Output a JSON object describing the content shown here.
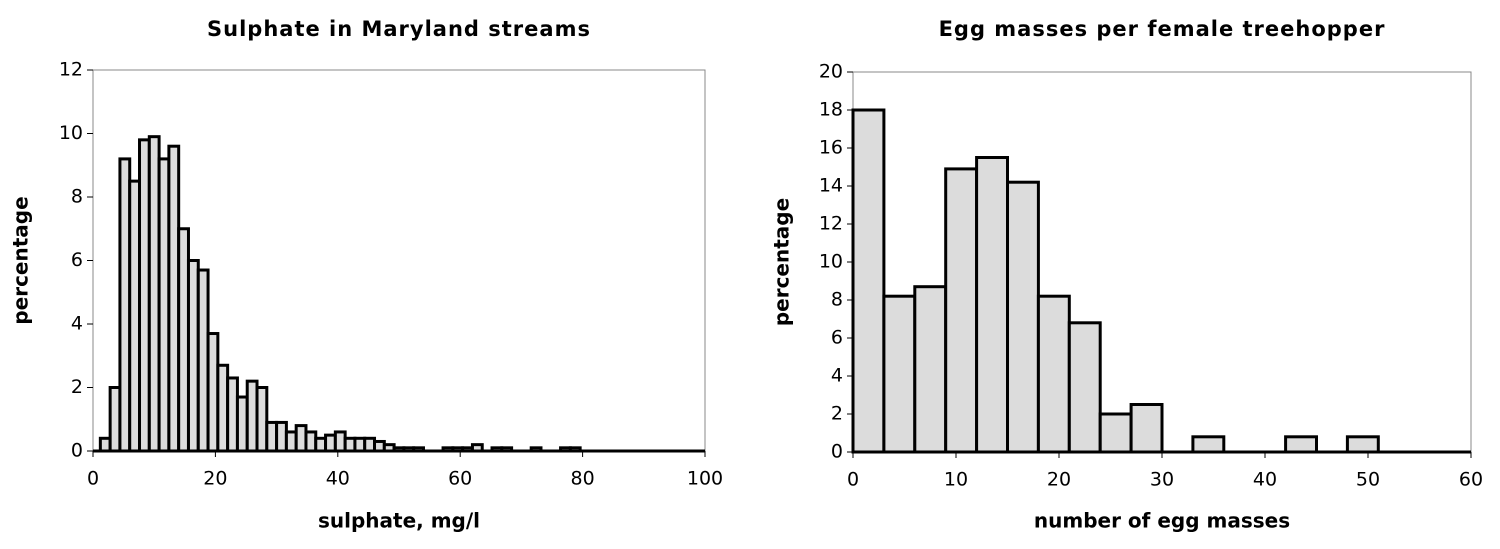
{
  "chart_data": [
    {
      "type": "histogram",
      "title": "Sulphate in Maryland streams",
      "xlabel": "sulphate, mg/l",
      "ylabel": "percentage",
      "bins": [
        1.2,
        2.8,
        4.4,
        6,
        7.6,
        9.2,
        10.8,
        12.4,
        14,
        15.6,
        17.2,
        18.8,
        20.4,
        22,
        23.6,
        25.2,
        26.8,
        28.4,
        30,
        31.6,
        33.2,
        34.8,
        36.4,
        38,
        39.6,
        41.2,
        42.8,
        44.4,
        46,
        47.6,
        49.2,
        50.8,
        52.4,
        54,
        55.6,
        57.2,
        58.8,
        60.4,
        62,
        63.6,
        65.2,
        66.8,
        68.4,
        70,
        71.6,
        73.2,
        74.8,
        76.4,
        78,
        79.6
      ],
      "values": [
        0.4,
        2.0,
        9.2,
        8.5,
        9.8,
        9.9,
        9.2,
        9.6,
        7.0,
        6.0,
        5.7,
        3.7,
        2.7,
        2.3,
        1.7,
        2.2,
        2.0,
        0.9,
        0.9,
        0.6,
        0.8,
        0.6,
        0.4,
        0.5,
        0.6,
        0.4,
        0.4,
        0.4,
        0.3,
        0.2,
        0.1,
        0.1,
        0.1,
        0,
        0,
        0.1,
        0.1,
        0.1,
        0.2,
        0,
        0.1,
        0.1,
        0,
        0,
        0.1,
        0,
        0,
        0.1,
        0.1
      ],
      "color": "#dcdcdc",
      "xlim": [
        0,
        100
      ],
      "xticks": [
        0,
        20,
        40,
        60,
        80,
        100
      ],
      "ylim": [
        0,
        12
      ],
      "yticks": [
        0,
        2,
        4,
        6,
        8,
        10,
        12
      ]
    },
    {
      "type": "histogram",
      "title": "Egg masses per female treehopper",
      "xlabel": "number of egg masses",
      "ylabel": "percentage",
      "bins": [
        0,
        3,
        6,
        9,
        12,
        15,
        18,
        21,
        24,
        27,
        30,
        33,
        36,
        39,
        42,
        45,
        48,
        51
      ],
      "values": [
        18,
        8.2,
        8.7,
        14.9,
        15.5,
        14.2,
        8.2,
        6.8,
        2.0,
        2.5,
        0,
        0.8,
        0,
        0,
        0.8,
        0,
        0.8
      ],
      "color": "#dcdcdc",
      "xlim": [
        0,
        60
      ],
      "xticks": [
        0,
        10,
        20,
        30,
        40,
        50,
        60
      ],
      "ylim": [
        0,
        20
      ],
      "yticks": [
        0,
        2,
        4,
        6,
        8,
        10,
        12,
        14,
        16,
        18,
        20
      ]
    }
  ]
}
